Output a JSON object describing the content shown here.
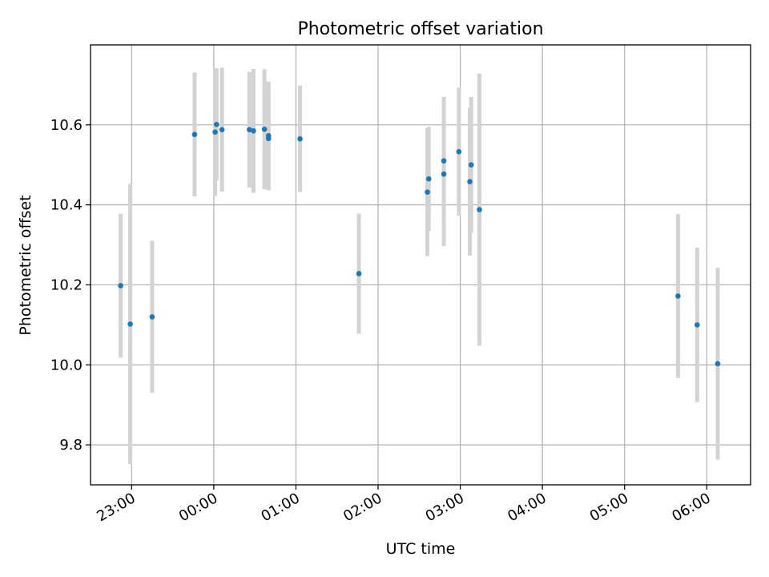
{
  "chart_data": {
    "type": "scatter",
    "title": "Photometric offset variation",
    "xlabel": "UTC time",
    "ylabel": "Photometric offset",
    "x_axis_type": "time",
    "xlim": [
      "22:30",
      "06:32"
    ],
    "ylim": [
      9.7,
      10.8
    ],
    "x_ticks": [
      "23:00",
      "00:00",
      "01:00",
      "02:00",
      "03:00",
      "04:00",
      "05:00",
      "06:00"
    ],
    "y_ticks": [
      "9.8",
      "10.0",
      "10.2",
      "10.4",
      "10.6"
    ],
    "grid": true,
    "colors": {
      "points": "#1f77b4",
      "errorbars": "#d3d3d3",
      "grid": "#b0b0b0"
    },
    "points": [
      {
        "x": "22:52",
        "y": 10.198,
        "err": 0.18
      },
      {
        "x": "22:59",
        "y": 10.102,
        "err": 0.35
      },
      {
        "x": "23:15",
        "y": 10.12,
        "err": 0.19
      },
      {
        "x": "23:46",
        "y": 10.576,
        "err": 0.155
      },
      {
        "x": "00:01",
        "y": 10.582,
        "err": 0.16
      },
      {
        "x": "00:02",
        "y": 10.601,
        "err": 0.14
      },
      {
        "x": "00:06",
        "y": 10.588,
        "err": 0.155
      },
      {
        "x": "00:26",
        "y": 10.588,
        "err": 0.145
      },
      {
        "x": "00:29",
        "y": 10.585,
        "err": 0.155
      },
      {
        "x": "00:37",
        "y": 10.589,
        "err": 0.15
      },
      {
        "x": "00:40",
        "y": 10.573,
        "err": 0.135
      },
      {
        "x": "00:40",
        "y": 10.566,
        "err": 0.13
      },
      {
        "x": "01:03",
        "y": 10.565,
        "err": 0.133
      },
      {
        "x": "01:46",
        "y": 10.228,
        "err": 0.15
      },
      {
        "x": "02:36",
        "y": 10.432,
        "err": 0.16
      },
      {
        "x": "02:37",
        "y": 10.465,
        "err": 0.13
      },
      {
        "x": "02:48",
        "y": 10.51,
        "err": 0.16
      },
      {
        "x": "02:48",
        "y": 10.477,
        "err": 0.18
      },
      {
        "x": "02:59",
        "y": 10.533,
        "err": 0.16
      },
      {
        "x": "03:07",
        "y": 10.458,
        "err": 0.185
      },
      {
        "x": "03:08",
        "y": 10.5,
        "err": 0.17
      },
      {
        "x": "03:14",
        "y": 10.388,
        "err": 0.34
      },
      {
        "x": "05:39",
        "y": 10.172,
        "err": 0.205
      },
      {
        "x": "05:53",
        "y": 10.1,
        "err": 0.193
      },
      {
        "x": "06:08",
        "y": 10.003,
        "err": 0.24
      }
    ]
  }
}
